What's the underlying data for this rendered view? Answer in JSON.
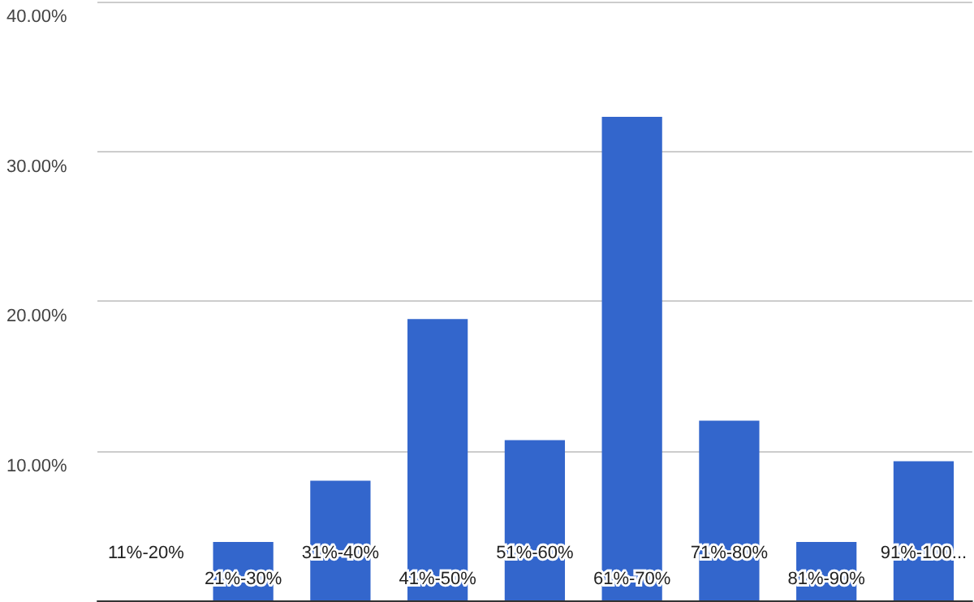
{
  "chart_data": {
    "type": "bar",
    "categories": [
      "11%-20%",
      "21%-30%",
      "31%-40%",
      "41%-50%",
      "51%-60%",
      "61%-70%",
      "71%-80%",
      "81%-90%",
      "91%-100..."
    ],
    "values": [
      0,
      3.9,
      8.0,
      18.8,
      10.7,
      32.3,
      12.0,
      3.9,
      9.3
    ],
    "color": "#3366cc",
    "ylim": [
      0,
      40
    ],
    "yticks": [
      {
        "value": 0,
        "label": null
      },
      {
        "value": 10,
        "label": "10.00%"
      },
      {
        "value": 20,
        "label": "20.00%"
      },
      {
        "value": 30,
        "label": "30.00%"
      },
      {
        "value": 40,
        "label": "40.00%"
      }
    ],
    "grid": "y"
  }
}
